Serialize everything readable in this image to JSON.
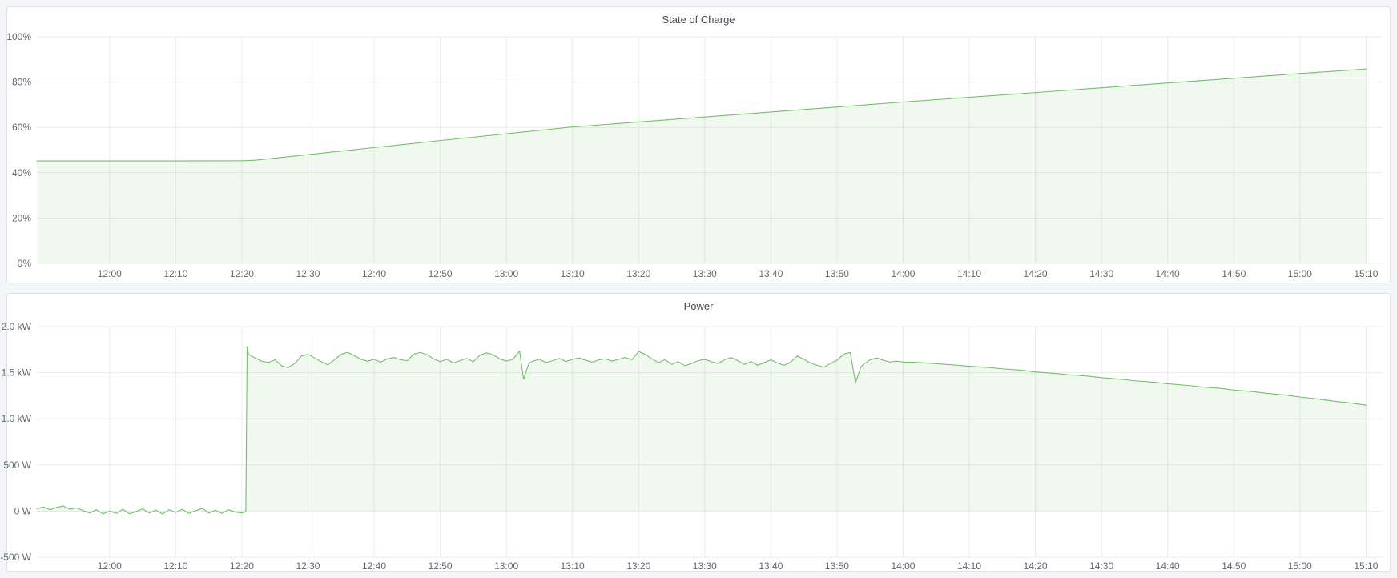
{
  "colors": {
    "page_background": "#f4f5f7",
    "panel_background": "#ffffff",
    "panel_border": "#dfe3e8",
    "grid_line": "#e8ebee",
    "series_green": "#73bf69",
    "series_green_fill": "rgba(115,191,105,0.10)",
    "tick_text": "#63676e",
    "title_text": "#44484f"
  },
  "chart_data": [
    {
      "type": "area",
      "title": "State of Charge",
      "unit": "%",
      "grid": true,
      "legend": "none",
      "x_domain_minutes": [
        709,
        912.5
      ],
      "y_domain": [
        0,
        100
      ],
      "x_ticks": [
        {
          "m": 720,
          "label": "12:00"
        },
        {
          "m": 730,
          "label": "12:10"
        },
        {
          "m": 740,
          "label": "12:20"
        },
        {
          "m": 750,
          "label": "12:30"
        },
        {
          "m": 760,
          "label": "12:40"
        },
        {
          "m": 770,
          "label": "12:50"
        },
        {
          "m": 780,
          "label": "13:00"
        },
        {
          "m": 790,
          "label": "13:10"
        },
        {
          "m": 800,
          "label": "13:20"
        },
        {
          "m": 810,
          "label": "13:30"
        },
        {
          "m": 820,
          "label": "13:40"
        },
        {
          "m": 830,
          "label": "13:50"
        },
        {
          "m": 840,
          "label": "14:00"
        },
        {
          "m": 850,
          "label": "14:10"
        },
        {
          "m": 860,
          "label": "14:20"
        },
        {
          "m": 870,
          "label": "14:30"
        },
        {
          "m": 880,
          "label": "14:40"
        },
        {
          "m": 890,
          "label": "14:50"
        },
        {
          "m": 900,
          "label": "15:00"
        },
        {
          "m": 910,
          "label": "15:10"
        }
      ],
      "y_ticks": [
        {
          "v": 100,
          "label": "100%"
        },
        {
          "v": 80,
          "label": "80%"
        },
        {
          "v": 60,
          "label": "60%"
        },
        {
          "v": 40,
          "label": "40%"
        },
        {
          "v": 20,
          "label": "20%"
        },
        {
          "v": 0,
          "label": "0%"
        }
      ],
      "series": [
        {
          "name": "State of Charge",
          "color": "#73bf69",
          "fill": "rgba(115,191,105,0.10)",
          "fill_baseline": 0,
          "points": [
            [
              709,
              45.2
            ],
            [
              720,
              45.2
            ],
            [
              730,
              45.2
            ],
            [
              740,
              45.3
            ],
            [
              742,
              45.5
            ],
            [
              750,
              48.0
            ],
            [
              760,
              51.1
            ],
            [
              770,
              54.2
            ],
            [
              780,
              57.2
            ],
            [
              790,
              60.2
            ],
            [
              800,
              62.4
            ],
            [
              810,
              64.6
            ],
            [
              820,
              66.8
            ],
            [
              830,
              69.0
            ],
            [
              840,
              71.2
            ],
            [
              850,
              73.3
            ],
            [
              860,
              75.4
            ],
            [
              870,
              77.5
            ],
            [
              880,
              79.6
            ],
            [
              890,
              81.7
            ],
            [
              900,
              83.8
            ],
            [
              910,
              85.8
            ]
          ]
        }
      ]
    },
    {
      "type": "area",
      "title": "Power",
      "unit": "W",
      "grid": true,
      "legend": "none",
      "x_domain_minutes": [
        709,
        912.5
      ],
      "y_domain": [
        -500,
        2000
      ],
      "x_ticks": [
        {
          "m": 720,
          "label": "12:00"
        },
        {
          "m": 730,
          "label": "12:10"
        },
        {
          "m": 740,
          "label": "12:20"
        },
        {
          "m": 750,
          "label": "12:30"
        },
        {
          "m": 760,
          "label": "12:40"
        },
        {
          "m": 770,
          "label": "12:50"
        },
        {
          "m": 780,
          "label": "13:00"
        },
        {
          "m": 790,
          "label": "13:10"
        },
        {
          "m": 800,
          "label": "13:20"
        },
        {
          "m": 810,
          "label": "13:30"
        },
        {
          "m": 820,
          "label": "13:40"
        },
        {
          "m": 830,
          "label": "13:50"
        },
        {
          "m": 840,
          "label": "14:00"
        },
        {
          "m": 850,
          "label": "14:10"
        },
        {
          "m": 860,
          "label": "14:20"
        },
        {
          "m": 870,
          "label": "14:30"
        },
        {
          "m": 880,
          "label": "14:40"
        },
        {
          "m": 890,
          "label": "14:50"
        },
        {
          "m": 900,
          "label": "15:00"
        },
        {
          "m": 910,
          "label": "15:10"
        }
      ],
      "y_ticks": [
        {
          "v": 2000,
          "label": "2.0 kW"
        },
        {
          "v": 1500,
          "label": "1.5 kW"
        },
        {
          "v": 1000,
          "label": "1.0 kW"
        },
        {
          "v": 500,
          "label": "500 W"
        },
        {
          "v": 0,
          "label": "0 W"
        },
        {
          "v": -500,
          "label": "-500 W"
        }
      ],
      "series": [
        {
          "name": "Power",
          "color": "#73bf69",
          "fill": "rgba(115,191,105,0.10)",
          "fill_baseline": 0,
          "points": [
            [
              709,
              25
            ],
            [
              710,
              45
            ],
            [
              711,
              15
            ],
            [
              712,
              40
            ],
            [
              713,
              55
            ],
            [
              714,
              20
            ],
            [
              715,
              35
            ],
            [
              716,
              5
            ],
            [
              717,
              -20
            ],
            [
              718,
              15
            ],
            [
              719,
              -30
            ],
            [
              720,
              0
            ],
            [
              721,
              -25
            ],
            [
              722,
              20
            ],
            [
              723,
              -30
            ],
            [
              724,
              -5
            ],
            [
              725,
              25
            ],
            [
              726,
              -20
            ],
            [
              727,
              10
            ],
            [
              728,
              -30
            ],
            [
              729,
              15
            ],
            [
              730,
              -15
            ],
            [
              731,
              20
            ],
            [
              732,
              -25
            ],
            [
              733,
              5
            ],
            [
              734,
              30
            ],
            [
              735,
              -20
            ],
            [
              736,
              10
            ],
            [
              737,
              -25
            ],
            [
              738,
              15
            ],
            [
              739,
              -10
            ],
            [
              740,
              -20
            ],
            [
              740.6,
              -5
            ],
            [
              740.8,
              1780
            ],
            [
              741,
              1700
            ],
            [
              742,
              1660
            ],
            [
              743,
              1625
            ],
            [
              744,
              1610
            ],
            [
              745,
              1640
            ],
            [
              746,
              1575
            ],
            [
              747,
              1555
            ],
            [
              748,
              1600
            ],
            [
              749,
              1680
            ],
            [
              750,
              1700
            ],
            [
              751,
              1660
            ],
            [
              752,
              1620
            ],
            [
              753,
              1585
            ],
            [
              754,
              1640
            ],
            [
              755,
              1700
            ],
            [
              756,
              1720
            ],
            [
              757,
              1685
            ],
            [
              758,
              1645
            ],
            [
              759,
              1625
            ],
            [
              760,
              1645
            ],
            [
              761,
              1615
            ],
            [
              762,
              1650
            ],
            [
              763,
              1665
            ],
            [
              764,
              1640
            ],
            [
              765,
              1630
            ],
            [
              766,
              1700
            ],
            [
              767,
              1720
            ],
            [
              768,
              1695
            ],
            [
              769,
              1650
            ],
            [
              770,
              1620
            ],
            [
              771,
              1645
            ],
            [
              772,
              1605
            ],
            [
              773,
              1630
            ],
            [
              774,
              1655
            ],
            [
              775,
              1620
            ],
            [
              776,
              1690
            ],
            [
              777,
              1715
            ],
            [
              778,
              1695
            ],
            [
              779,
              1650
            ],
            [
              780,
              1625
            ],
            [
              781,
              1645
            ],
            [
              782,
              1735
            ],
            [
              782.6,
              1430
            ],
            [
              783.4,
              1600
            ],
            [
              784,
              1625
            ],
            [
              785,
              1645
            ],
            [
              786,
              1610
            ],
            [
              787,
              1630
            ],
            [
              788,
              1655
            ],
            [
              789,
              1620
            ],
            [
              790,
              1645
            ],
            [
              791,
              1660
            ],
            [
              792,
              1635
            ],
            [
              793,
              1615
            ],
            [
              794,
              1640
            ],
            [
              795,
              1650
            ],
            [
              796,
              1625
            ],
            [
              797,
              1645
            ],
            [
              798,
              1665
            ],
            [
              799,
              1640
            ],
            [
              800,
              1730
            ],
            [
              801,
              1700
            ],
            [
              802,
              1650
            ],
            [
              803,
              1610
            ],
            [
              804,
              1640
            ],
            [
              805,
              1590
            ],
            [
              806,
              1620
            ],
            [
              807,
              1575
            ],
            [
              808,
              1600
            ],
            [
              809,
              1630
            ],
            [
              810,
              1645
            ],
            [
              811,
              1620
            ],
            [
              812,
              1600
            ],
            [
              813,
              1640
            ],
            [
              814,
              1665
            ],
            [
              815,
              1630
            ],
            [
              816,
              1590
            ],
            [
              817,
              1620
            ],
            [
              818,
              1580
            ],
            [
              819,
              1610
            ],
            [
              820,
              1640
            ],
            [
              821,
              1605
            ],
            [
              822,
              1580
            ],
            [
              823,
              1615
            ],
            [
              824,
              1680
            ],
            [
              825,
              1645
            ],
            [
              826,
              1605
            ],
            [
              827,
              1580
            ],
            [
              828,
              1560
            ],
            [
              829,
              1600
            ],
            [
              830,
              1635
            ],
            [
              831,
              1700
            ],
            [
              832,
              1720
            ],
            [
              832.8,
              1390
            ],
            [
              833.6,
              1560
            ],
            [
              834,
              1590
            ],
            [
              835,
              1640
            ],
            [
              836,
              1660
            ],
            [
              837,
              1635
            ],
            [
              838,
              1615
            ],
            [
              839,
              1625
            ],
            [
              840,
              1615
            ],
            [
              842,
              1612
            ],
            [
              845,
              1598
            ],
            [
              848,
              1582
            ],
            [
              850,
              1570
            ],
            [
              853,
              1556
            ],
            [
              855,
              1542
            ],
            [
              858,
              1526
            ],
            [
              860,
              1508
            ],
            [
              863,
              1492
            ],
            [
              865,
              1478
            ],
            [
              868,
              1462
            ],
            [
              870,
              1446
            ],
            [
              873,
              1428
            ],
            [
              875,
              1412
            ],
            [
              878,
              1396
            ],
            [
              880,
              1380
            ],
            [
              883,
              1362
            ],
            [
              885,
              1346
            ],
            [
              888,
              1330
            ],
            [
              890,
              1312
            ],
            [
              893,
              1294
            ],
            [
              895,
              1276
            ],
            [
              898,
              1256
            ],
            [
              900,
              1236
            ],
            [
              903,
              1212
            ],
            [
              905,
              1192
            ],
            [
              908,
              1168
            ],
            [
              910,
              1148
            ]
          ]
        }
      ]
    }
  ]
}
